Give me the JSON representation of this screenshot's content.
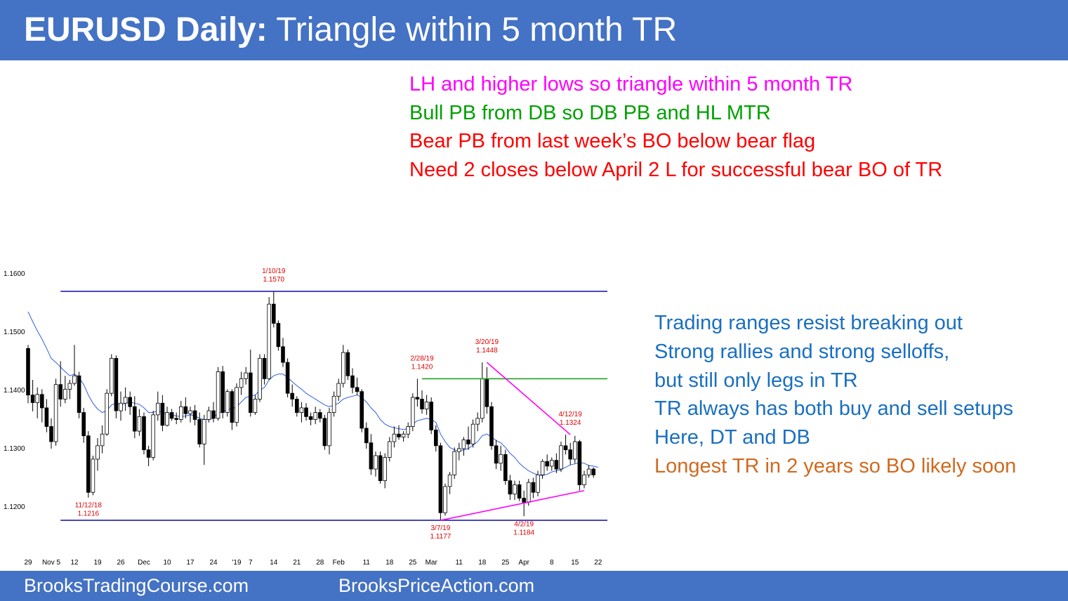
{
  "header": {
    "title_bold": "EURUSD Daily:",
    "title_rest": " Triangle within 5 month TR"
  },
  "notes_top": [
    {
      "text": "LH and higher lows so triangle within 5 month TR",
      "color": "#ff00ff"
    },
    {
      "text": "Bull PB from DB so DB PB and HL MTR",
      "color": "#00a000"
    },
    {
      "text": "Bear PB from last week’s BO below bear flag",
      "color": "#ff0000"
    },
    {
      "text": "Need 2 closes below April 2 L for successful bear BO of TR",
      "color": "#ff0000"
    }
  ],
  "notes_right": [
    {
      "text": "Trading ranges resist breaking out",
      "color": "#1a6fc0"
    },
    {
      "text": "Strong rallies and strong selloffs,",
      "color": "#1a6fc0"
    },
    {
      "text": "but still only legs in TR",
      "color": "#1a6fc0"
    },
    {
      "text": "TR always has both buy and sell setups",
      "color": "#1a6fc0"
    },
    {
      "text": "Here, DT and DB",
      "color": "#1a6fc0"
    },
    {
      "text": "Longest TR in 2 years so BO likely soon",
      "color": "#d06a20"
    }
  ],
  "footer": {
    "left": "BrooksTradingCourse.com",
    "right": "BrooksPriceAction.com"
  },
  "chart_data": {
    "type": "candlestick",
    "title": "",
    "y_ticks": [
      {
        "label": "1.1600",
        "value": 1.16
      },
      {
        "label": "1.1500",
        "value": 1.15
      },
      {
        "label": "1.1400",
        "value": 1.14
      },
      {
        "label": "1.1300",
        "value": 1.13
      },
      {
        "label": "1.1200",
        "value": 1.12
      }
    ],
    "x_ticks": [
      {
        "label": "29",
        "index": 0
      },
      {
        "label": "Nov 5",
        "index": 5
      },
      {
        "label": "12",
        "index": 10
      },
      {
        "label": "19",
        "index": 15
      },
      {
        "label": "26",
        "index": 20
      },
      {
        "label": "Dec",
        "index": 25
      },
      {
        "label": "10",
        "index": 30
      },
      {
        "label": "17",
        "index": 35
      },
      {
        "label": "24",
        "index": 40
      },
      {
        "label": "'19",
        "index": 45
      },
      {
        "label": "7",
        "index": 48
      },
      {
        "label": "14",
        "index": 53
      },
      {
        "label": "21",
        "index": 58
      },
      {
        "label": "28",
        "index": 63
      },
      {
        "label": "Feb",
        "index": 67
      },
      {
        "label": "11",
        "index": 73
      },
      {
        "label": "18",
        "index": 78
      },
      {
        "label": "25",
        "index": 83
      },
      {
        "label": "Mar",
        "index": 87
      },
      {
        "label": "11",
        "index": 93
      },
      {
        "label": "18",
        "index": 98
      },
      {
        "label": "25",
        "index": 103
      },
      {
        "label": "Apr",
        "index": 107
      },
      {
        "label": "8",
        "index": 113
      },
      {
        "label": "15",
        "index": 118
      },
      {
        "label": "22",
        "index": 123
      }
    ],
    "candles": [
      {
        "o": 1.1472,
        "h": 1.1478,
        "l": 1.1378,
        "c": 1.1392
      },
      {
        "o": 1.1392,
        "h": 1.1418,
        "l": 1.1364,
        "c": 1.1379
      },
      {
        "o": 1.1379,
        "h": 1.1405,
        "l": 1.1352,
        "c": 1.1393
      },
      {
        "o": 1.1393,
        "h": 1.1402,
        "l": 1.1345,
        "c": 1.137
      },
      {
        "o": 1.137,
        "h": 1.1385,
        "l": 1.1328,
        "c": 1.1338
      },
      {
        "o": 1.1338,
        "h": 1.1352,
        "l": 1.13,
        "c": 1.1312
      },
      {
        "o": 1.1312,
        "h": 1.142,
        "l": 1.1305,
        "c": 1.141
      },
      {
        "o": 1.141,
        "h": 1.145,
        "l": 1.1372,
        "c": 1.1385
      },
      {
        "o": 1.1385,
        "h": 1.1425,
        "l": 1.1378,
        "c": 1.1402
      },
      {
        "o": 1.1402,
        "h": 1.1418,
        "l": 1.1385,
        "c": 1.1412
      },
      {
        "o": 1.1412,
        "h": 1.1478,
        "l": 1.1408,
        "c": 1.1425
      },
      {
        "o": 1.1425,
        "h": 1.1432,
        "l": 1.1352,
        "c": 1.1362
      },
      {
        "o": 1.1362,
        "h": 1.137,
        "l": 1.131,
        "c": 1.1322
      },
      {
        "o": 1.1322,
        "h": 1.133,
        "l": 1.1216,
        "c": 1.1225
      },
      {
        "o": 1.1225,
        "h": 1.1288,
        "l": 1.122,
        "c": 1.1282
      },
      {
        "o": 1.1282,
        "h": 1.1318,
        "l": 1.1262,
        "c": 1.1305
      },
      {
        "o": 1.1305,
        "h": 1.134,
        "l": 1.1292,
        "c": 1.1325
      },
      {
        "o": 1.1325,
        "h": 1.1402,
        "l": 1.1322,
        "c": 1.1395
      },
      {
        "o": 1.1395,
        "h": 1.1462,
        "l": 1.139,
        "c": 1.1455
      },
      {
        "o": 1.1455,
        "h": 1.146,
        "l": 1.1352,
        "c": 1.1365
      },
      {
        "o": 1.1365,
        "h": 1.1398,
        "l": 1.1348,
        "c": 1.1378
      },
      {
        "o": 1.1378,
        "h": 1.1405,
        "l": 1.1365,
        "c": 1.1388
      },
      {
        "o": 1.1388,
        "h": 1.1398,
        "l": 1.1358,
        "c": 1.1372
      },
      {
        "o": 1.1372,
        "h": 1.139,
        "l": 1.1318,
        "c": 1.133
      },
      {
        "o": 1.133,
        "h": 1.1368,
        "l": 1.1322,
        "c": 1.1355
      },
      {
        "o": 1.1355,
        "h": 1.1362,
        "l": 1.129,
        "c": 1.1298
      },
      {
        "o": 1.1298,
        "h": 1.1305,
        "l": 1.127,
        "c": 1.1285
      },
      {
        "o": 1.1285,
        "h": 1.1365,
        "l": 1.128,
        "c": 1.1358
      },
      {
        "o": 1.1358,
        "h": 1.1398,
        "l": 1.1348,
        "c": 1.1378
      },
      {
        "o": 1.1378,
        "h": 1.1392,
        "l": 1.133,
        "c": 1.134
      },
      {
        "o": 1.134,
        "h": 1.1372,
        "l": 1.1338,
        "c": 1.1362
      },
      {
        "o": 1.1362,
        "h": 1.1368,
        "l": 1.1348,
        "c": 1.1352
      },
      {
        "o": 1.1352,
        "h": 1.1362,
        "l": 1.1342,
        "c": 1.135
      },
      {
        "o": 1.135,
        "h": 1.1382,
        "l": 1.1345,
        "c": 1.1372
      },
      {
        "o": 1.1372,
        "h": 1.1388,
        "l": 1.1352,
        "c": 1.136
      },
      {
        "o": 1.136,
        "h": 1.1372,
        "l": 1.1345,
        "c": 1.1365
      },
      {
        "o": 1.1365,
        "h": 1.1375,
        "l": 1.134,
        "c": 1.135
      },
      {
        "o": 1.135,
        "h": 1.1362,
        "l": 1.1302,
        "c": 1.1308
      },
      {
        "o": 1.1308,
        "h": 1.1358,
        "l": 1.1272,
        "c": 1.135
      },
      {
        "o": 1.135,
        "h": 1.1372,
        "l": 1.1345,
        "c": 1.1365
      },
      {
        "o": 1.1365,
        "h": 1.138,
        "l": 1.1345,
        "c": 1.1352
      },
      {
        "o": 1.1352,
        "h": 1.144,
        "l": 1.1348,
        "c": 1.1432
      },
      {
        "o": 1.1432,
        "h": 1.1442,
        "l": 1.1352,
        "c": 1.1362
      },
      {
        "o": 1.1362,
        "h": 1.1402,
        "l": 1.1355,
        "c": 1.1398
      },
      {
        "o": 1.1398,
        "h": 1.1402,
        "l": 1.1332,
        "c": 1.1345
      },
      {
        "o": 1.1345,
        "h": 1.1412,
        "l": 1.1338,
        "c": 1.1405
      },
      {
        "o": 1.1405,
        "h": 1.1432,
        "l": 1.1392,
        "c": 1.142
      },
      {
        "o": 1.142,
        "h": 1.144,
        "l": 1.141,
        "c": 1.143
      },
      {
        "o": 1.143,
        "h": 1.147,
        "l": 1.1355,
        "c": 1.1362
      },
      {
        "o": 1.1362,
        "h": 1.1392,
        "l": 1.1358,
        "c": 1.1385
      },
      {
        "o": 1.1385,
        "h": 1.1462,
        "l": 1.138,
        "c": 1.1455
      },
      {
        "o": 1.1455,
        "h": 1.1462,
        "l": 1.141,
        "c": 1.142
      },
      {
        "o": 1.142,
        "h": 1.156,
        "l": 1.1418,
        "c": 1.1548
      },
      {
        "o": 1.1548,
        "h": 1.157,
        "l": 1.1508,
        "c": 1.1515
      },
      {
        "o": 1.1515,
        "h": 1.152,
        "l": 1.1468,
        "c": 1.1475
      },
      {
        "o": 1.1475,
        "h": 1.149,
        "l": 1.144,
        "c": 1.1448
      },
      {
        "o": 1.1448,
        "h": 1.1455,
        "l": 1.1388,
        "c": 1.1395
      },
      {
        "o": 1.1395,
        "h": 1.141,
        "l": 1.1372,
        "c": 1.1385
      },
      {
        "o": 1.1385,
        "h": 1.139,
        "l": 1.1355,
        "c": 1.1362
      },
      {
        "o": 1.1362,
        "h": 1.138,
        "l": 1.1345,
        "c": 1.137
      },
      {
        "o": 1.137,
        "h": 1.1378,
        "l": 1.1348,
        "c": 1.1355
      },
      {
        "o": 1.1355,
        "h": 1.1362,
        "l": 1.134,
        "c": 1.135
      },
      {
        "o": 1.135,
        "h": 1.1372,
        "l": 1.1342,
        "c": 1.1362
      },
      {
        "o": 1.1362,
        "h": 1.1368,
        "l": 1.1345,
        "c": 1.1352
      },
      {
        "o": 1.1352,
        "h": 1.1358,
        "l": 1.1298,
        "c": 1.1305
      },
      {
        "o": 1.1305,
        "h": 1.137,
        "l": 1.129,
        "c": 1.1362
      },
      {
        "o": 1.1362,
        "h": 1.1398,
        "l": 1.1355,
        "c": 1.139
      },
      {
        "o": 1.139,
        "h": 1.142,
        "l": 1.1382,
        "c": 1.1412
      },
      {
        "o": 1.1412,
        "h": 1.1478,
        "l": 1.1405,
        "c": 1.1465
      },
      {
        "o": 1.1465,
        "h": 1.147,
        "l": 1.1418,
        "c": 1.1425
      },
      {
        "o": 1.1425,
        "h": 1.1438,
        "l": 1.1395,
        "c": 1.1405
      },
      {
        "o": 1.1405,
        "h": 1.1422,
        "l": 1.1392,
        "c": 1.1398
      },
      {
        "o": 1.1398,
        "h": 1.1402,
        "l": 1.1328,
        "c": 1.1335
      },
      {
        "o": 1.1335,
        "h": 1.1345,
        "l": 1.13,
        "c": 1.131
      },
      {
        "o": 1.131,
        "h": 1.1325,
        "l": 1.1255,
        "c": 1.1265
      },
      {
        "o": 1.1265,
        "h": 1.1295,
        "l": 1.1252,
        "c": 1.1288
      },
      {
        "o": 1.1288,
        "h": 1.1295,
        "l": 1.124,
        "c": 1.1245
      },
      {
        "o": 1.1245,
        "h": 1.1292,
        "l": 1.1232,
        "c": 1.1285
      },
      {
        "o": 1.1285,
        "h": 1.132,
        "l": 1.1278,
        "c": 1.1312
      },
      {
        "o": 1.1312,
        "h": 1.1338,
        "l": 1.1302,
        "c": 1.1325
      },
      {
        "o": 1.1325,
        "h": 1.134,
        "l": 1.1315,
        "c": 1.132
      },
      {
        "o": 1.132,
        "h": 1.133,
        "l": 1.1312,
        "c": 1.1325
      },
      {
        "o": 1.1325,
        "h": 1.1345,
        "l": 1.1318,
        "c": 1.1338
      },
      {
        "o": 1.1338,
        "h": 1.1395,
        "l": 1.133,
        "c": 1.1388
      },
      {
        "o": 1.1388,
        "h": 1.142,
        "l": 1.1372,
        "c": 1.1385
      },
      {
        "o": 1.1385,
        "h": 1.14,
        "l": 1.136,
        "c": 1.1368
      },
      {
        "o": 1.1368,
        "h": 1.1392,
        "l": 1.1358,
        "c": 1.138
      },
      {
        "o": 1.138,
        "h": 1.1388,
        "l": 1.1325,
        "c": 1.1332
      },
      {
        "o": 1.1332,
        "h": 1.134,
        "l": 1.1295,
        "c": 1.1305
      },
      {
        "o": 1.1305,
        "h": 1.131,
        "l": 1.1177,
        "c": 1.119
      },
      {
        "o": 1.119,
        "h": 1.124,
        "l": 1.1185,
        "c": 1.1235
      },
      {
        "o": 1.1235,
        "h": 1.126,
        "l": 1.1222,
        "c": 1.1255
      },
      {
        "o": 1.1255,
        "h": 1.1302,
        "l": 1.1248,
        "c": 1.1295
      },
      {
        "o": 1.1295,
        "h": 1.131,
        "l": 1.128,
        "c": 1.13
      },
      {
        "o": 1.13,
        "h": 1.132,
        "l": 1.1288,
        "c": 1.1315
      },
      {
        "o": 1.1315,
        "h": 1.1338,
        "l": 1.1298,
        "c": 1.1308
      },
      {
        "o": 1.1308,
        "h": 1.135,
        "l": 1.1302,
        "c": 1.1342
      },
      {
        "o": 1.1342,
        "h": 1.1362,
        "l": 1.133,
        "c": 1.1352
      },
      {
        "o": 1.1352,
        "h": 1.1448,
        "l": 1.1345,
        "c": 1.142
      },
      {
        "o": 1.142,
        "h": 1.144,
        "l": 1.136,
        "c": 1.1372
      },
      {
        "o": 1.1372,
        "h": 1.138,
        "l": 1.1298,
        "c": 1.1305
      },
      {
        "o": 1.1305,
        "h": 1.1315,
        "l": 1.1265,
        "c": 1.1275
      },
      {
        "o": 1.1275,
        "h": 1.1305,
        "l": 1.1262,
        "c": 1.129
      },
      {
        "o": 1.129,
        "h": 1.1298,
        "l": 1.1238,
        "c": 1.1245
      },
      {
        "o": 1.1245,
        "h": 1.1255,
        "l": 1.1212,
        "c": 1.1222
      },
      {
        "o": 1.1222,
        "h": 1.1245,
        "l": 1.1212,
        "c": 1.1238
      },
      {
        "o": 1.1238,
        "h": 1.1245,
        "l": 1.121,
        "c": 1.1215
      },
      {
        "o": 1.1215,
        "h": 1.1228,
        "l": 1.1184,
        "c": 1.1208
      },
      {
        "o": 1.1208,
        "h": 1.1248,
        "l": 1.1202,
        "c": 1.1242
      },
      {
        "o": 1.1242,
        "h": 1.125,
        "l": 1.1215,
        "c": 1.1225
      },
      {
        "o": 1.1225,
        "h": 1.1262,
        "l": 1.1218,
        "c": 1.1255
      },
      {
        "o": 1.1255,
        "h": 1.1282,
        "l": 1.1248,
        "c": 1.1278
      },
      {
        "o": 1.1278,
        "h": 1.129,
        "l": 1.1262,
        "c": 1.127
      },
      {
        "o": 1.127,
        "h": 1.1285,
        "l": 1.1262,
        "c": 1.128
      },
      {
        "o": 1.128,
        "h": 1.1292,
        "l": 1.1258,
        "c": 1.1265
      },
      {
        "o": 1.1265,
        "h": 1.1312,
        "l": 1.126,
        "c": 1.1305
      },
      {
        "o": 1.1305,
        "h": 1.1324,
        "l": 1.129,
        "c": 1.1298
      },
      {
        "o": 1.1298,
        "h": 1.131,
        "l": 1.1272,
        "c": 1.1282
      },
      {
        "o": 1.1282,
        "h": 1.1322,
        "l": 1.1275,
        "c": 1.1312
      },
      {
        "o": 1.1312,
        "h": 1.1315,
        "l": 1.1228,
        "c": 1.1238
      },
      {
        "o": 1.1238,
        "h": 1.1262,
        "l": 1.1232,
        "c": 1.1255
      },
      {
        "o": 1.1255,
        "h": 1.1272,
        "l": 1.125,
        "c": 1.1265
      },
      {
        "o": 1.1265,
        "h": 1.1268,
        "l": 1.125,
        "c": 1.1255
      }
    ],
    "moving_average": [
      1.1535,
      1.1518,
      1.1502,
      1.1488,
      1.1472,
      1.1455,
      1.1448,
      1.144,
      1.1432,
      1.1425,
      1.1428,
      1.1422,
      1.141,
      1.1392,
      1.1378,
      1.1368,
      1.1362,
      1.1365,
      1.1375,
      1.1378,
      1.1375,
      1.1378,
      1.138,
      1.1378,
      1.1376,
      1.137,
      1.1362,
      1.1362,
      1.1365,
      1.1362,
      1.136,
      1.1358,
      1.1356,
      1.1355,
      1.1356,
      1.1358,
      1.1356,
      1.1352,
      1.135,
      1.135,
      1.1352,
      1.1362,
      1.1362,
      1.1368,
      1.1368,
      1.1372,
      1.138,
      1.1388,
      1.139,
      1.1392,
      1.14,
      1.1405,
      1.1418,
      1.1425,
      1.1428,
      1.1428,
      1.1422,
      1.1415,
      1.1408,
      1.1402,
      1.1395,
      1.139,
      1.1385,
      1.138,
      1.1375,
      1.1372,
      1.1375,
      1.1378,
      1.1385,
      1.1388,
      1.139,
      1.1392,
      1.1388,
      1.138,
      1.137,
      1.1362,
      1.135,
      1.1342,
      1.1338,
      1.1336,
      1.1334,
      1.1333,
      1.1334,
      1.1342,
      1.1348,
      1.135,
      1.1352,
      1.135,
      1.1345,
      1.1325,
      1.1312,
      1.1302,
      1.1298,
      1.1296,
      1.1298,
      1.13,
      1.1306,
      1.1312,
      1.1322,
      1.1325,
      1.132,
      1.1314,
      1.131,
      1.1302,
      1.1292,
      1.1285,
      1.1275,
      1.1268,
      1.1262,
      1.1258,
      1.1255,
      1.1254,
      1.1256,
      1.126,
      1.1262,
      1.1264,
      1.1268,
      1.1272,
      1.1274,
      1.1276,
      1.1275,
      1.1271,
      1.127,
      1.1268
    ],
    "lines": [
      {
        "name": "tr-top",
        "from": {
          "index": 7,
          "value": 1.157
        },
        "to": {
          "index": 125,
          "value": 1.157
        },
        "color": "#1f1fb0"
      },
      {
        "name": "tr-bottom",
        "from": {
          "index": 7,
          "value": 1.1177
        },
        "to": {
          "index": 125,
          "value": 1.1177
        },
        "color": "#1f1fb0"
      },
      {
        "name": "feb28-high",
        "from": {
          "index": 85,
          "value": 1.142
        },
        "to": {
          "index": 125,
          "value": 1.142
        },
        "color": "#20a020"
      },
      {
        "name": "lh-trend",
        "from": {
          "index": 99,
          "value": 1.1448
        },
        "to": {
          "index": 117,
          "value": 1.1324
        },
        "color": "#ff00ff"
      },
      {
        "name": "hl-trend",
        "from": {
          "index": 89,
          "value": 1.1177
        },
        "to": {
          "index": 120,
          "value": 1.1228
        },
        "color": "#ff00ff"
      }
    ],
    "annotations": [
      {
        "lines": [
          "1/10/19",
          "1.1570"
        ],
        "index": 53,
        "value": 1.157,
        "pos": "above"
      },
      {
        "lines": [
          "2/28/19",
          "1.1420"
        ],
        "index": 85,
        "value": 1.142,
        "pos": "above"
      },
      {
        "lines": [
          "3/20/19",
          "1.1448"
        ],
        "index": 99,
        "value": 1.1448,
        "pos": "above"
      },
      {
        "lines": [
          "4/12/19",
          "1.1324"
        ],
        "index": 117,
        "value": 1.1324,
        "pos": "above"
      },
      {
        "lines": [
          "11/12/18",
          "1.1216"
        ],
        "index": 13,
        "value": 1.1216,
        "pos": "below"
      },
      {
        "lines": [
          "3/7/19",
          "1.1177"
        ],
        "index": 89,
        "value": 1.1177,
        "pos": "below"
      },
      {
        "lines": [
          "4/2/19",
          "1.1184"
        ],
        "index": 107,
        "value": 1.1184,
        "pos": "below"
      }
    ],
    "colors": {
      "bull": "#ffffff",
      "bear": "#000000",
      "ma": "#3060e0",
      "annotation": "#e00000"
    }
  }
}
